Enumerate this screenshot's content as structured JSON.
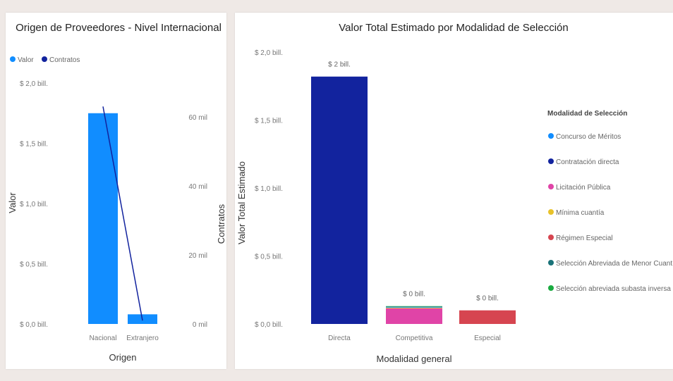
{
  "chart_data": [
    {
      "type": "bar+line",
      "title": "Origen de Proveedores - Nivel Internacional",
      "xlabel": "Origen",
      "ylabel": "Valor",
      "y2label": "Contratos",
      "categories": [
        "Nacional",
        "Extranjero"
      ],
      "legend": {
        "placement": "top-left",
        "items": [
          {
            "name": "Valor",
            "color": "#118dff"
          },
          {
            "name": "Contratos",
            "color": "#12239e"
          }
        ]
      },
      "series": [
        {
          "name": "Valor",
          "kind": "bar",
          "axis": "left",
          "values": [
            1.75,
            0.08
          ],
          "color": "#118dff"
        },
        {
          "name": "Contratos",
          "kind": "line",
          "axis": "right",
          "values": [
            63,
            1
          ],
          "color": "#12239e"
        }
      ],
      "ylim": [
        0,
        2.0
      ],
      "y_ticks": [
        0,
        0.5,
        1.0,
        1.5,
        2.0
      ],
      "y_tick_labels": [
        "$ 0,0 bill.",
        "$ 0,5 bill.",
        "$ 1,0 bill.",
        "$ 1,5 bill.",
        "$ 2,0 bill."
      ],
      "y2lim": [
        0,
        60
      ],
      "y2_ticks": [
        0,
        20,
        40,
        60
      ],
      "y2_tick_labels": [
        "0 mil",
        "20 mil",
        "40 mil",
        "60 mil"
      ],
      "grid": false
    },
    {
      "type": "bar",
      "title": "Valor Total Estimado por Modalidad de Selección",
      "xlabel": "Modalidad general",
      "ylabel": "Valor Total Estimado",
      "categories": [
        "Directa",
        "Competitiva",
        "Especial"
      ],
      "bars": [
        {
          "segments": [
            {
              "series": "Contratación directa",
              "value": 1.82
            }
          ],
          "label": "$ 2 bill."
        },
        {
          "segments": [
            {
              "series": "Licitación Pública",
              "value": 0.115
            },
            {
              "series": "Mínima cuantía",
              "value": 0.005
            },
            {
              "series": "Concurso de Méritos",
              "value": 0.004
            },
            {
              "series": "Selección Abreviada de Menor Cuantía",
              "value": 0.004
            },
            {
              "series": "Selección abreviada subasta inversa",
              "value": 0.003
            }
          ],
          "label": "$ 0 bill."
        },
        {
          "segments": [
            {
              "series": "Régimen Especial",
              "value": 0.1
            }
          ],
          "label": "$ 0 bill."
        }
      ],
      "ylim": [
        0,
        2.0
      ],
      "y_ticks": [
        0,
        0.5,
        1.0,
        1.5,
        2.0
      ],
      "y_tick_labels": [
        "$ 0,0 bill.",
        "$ 0,5 bill.",
        "$ 1,0 bill.",
        "$ 1,5 bill.",
        "$ 2,0 bill."
      ],
      "legend": {
        "title": "Modalidad de Selección",
        "placement": "right",
        "items": [
          {
            "name": "Concurso de Méritos",
            "color": "#118dff"
          },
          {
            "name": "Contratación directa",
            "color": "#12239e"
          },
          {
            "name": "Licitación Pública",
            "color": "#e044a7"
          },
          {
            "name": "Mínima cuantía",
            "color": "#e8c22a"
          },
          {
            "name": "Régimen Especial",
            "color": "#d64550"
          },
          {
            "name": "Selección Abreviada de Menor Cuantía",
            "color": "#197278"
          },
          {
            "name": "Selección abreviada subasta inversa",
            "color": "#1aab40"
          }
        ]
      },
      "grid": false
    }
  ]
}
